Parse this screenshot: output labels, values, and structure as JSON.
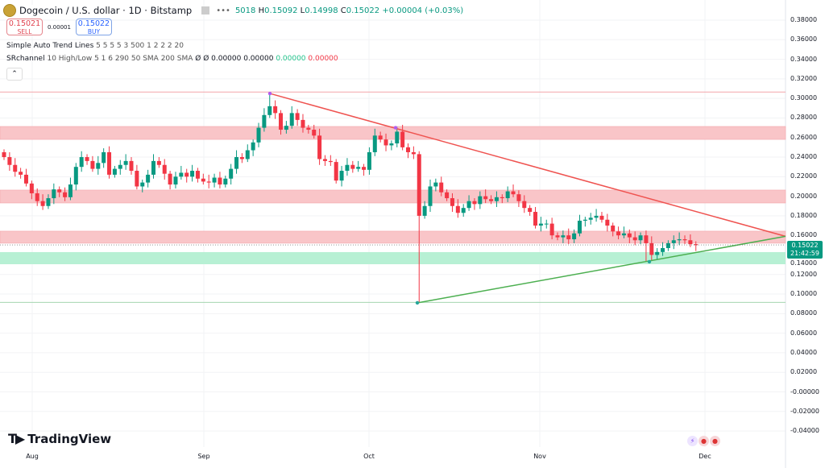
{
  "header": {
    "symbol_title": "Dogecoin / U.S. dollar · 1D · Bitstamp",
    "more_icon": "ellipsis-icon",
    "open_partial": "5018",
    "high_label": "H",
    "high": "0.15092",
    "low_label": "L",
    "low": "0.14998",
    "close_label": "C",
    "close": "0.15022",
    "change": "+0.00004 (+0.03%)"
  },
  "trade": {
    "sell_price": "0.15021",
    "sell_label": "SELL",
    "spread": "0.00001",
    "buy_price": "0.15022",
    "buy_label": "BUY"
  },
  "indicators": [
    {
      "name": "Simple Auto Trend Lines",
      "params": "5 5 5 5 3 500 1 2 2 2 20"
    },
    {
      "name": "SRchannel",
      "params": "10 High/Low 5 1 6 290 50 SMA 200 SMA",
      "v1": "Ø Ø 0.00000 0.00000",
      "v2": "0.00000",
      "v3": "0.00000"
    }
  ],
  "collapse_icon": "chevron-up-icon",
  "brand": "TradingView",
  "current_price": {
    "price": "0.15022",
    "countdown": "21:42:59"
  },
  "colors": {
    "up": "#089981",
    "down": "#f23645",
    "resistance_zone": "#f9c5c8",
    "support_zone": "#b7f0d4",
    "trend_down": "#ef5350",
    "trend_up": "#4caf50",
    "pivot": "#b05cf0"
  },
  "chart_data": {
    "type": "candlestick",
    "title": "Dogecoin / U.S. dollar · 1D · Bitstamp",
    "x_tick_labels": [
      "Aug",
      "Sep",
      "Oct",
      "Nov",
      "Dec"
    ],
    "y_tick_labels": [
      "0.38000",
      "0.36000",
      "0.34000",
      "0.32000",
      "0.30000",
      "0.28000",
      "0.26000",
      "0.24000",
      "0.22000",
      "0.20000",
      "0.18000",
      "0.16000",
      "0.14000",
      "0.12000",
      "0.10000",
      "0.08000",
      "0.06000",
      "0.04000",
      "0.02000",
      "-0.00000",
      "-0.02000",
      "-0.04000"
    ],
    "ylim": [
      -0.045,
      0.395
    ],
    "first_candle_date": "Jul 27",
    "closes": [
      0.24,
      0.232,
      0.225,
      0.222,
      0.213,
      0.203,
      0.195,
      0.19,
      0.198,
      0.207,
      0.204,
      0.199,
      0.212,
      0.23,
      0.24,
      0.236,
      0.228,
      0.234,
      0.245,
      0.222,
      0.228,
      0.232,
      0.236,
      0.226,
      0.21,
      0.214,
      0.222,
      0.236,
      0.232,
      0.223,
      0.212,
      0.22,
      0.224,
      0.22,
      0.226,
      0.218,
      0.215,
      0.214,
      0.219,
      0.212,
      0.218,
      0.228,
      0.24,
      0.238,
      0.247,
      0.255,
      0.27,
      0.283,
      0.292,
      0.285,
      0.268,
      0.272,
      0.285,
      0.278,
      0.27,
      0.268,
      0.262,
      0.238,
      0.236,
      0.235,
      0.216,
      0.226,
      0.232,
      0.228,
      0.23,
      0.227,
      0.245,
      0.262,
      0.258,
      0.252,
      0.254,
      0.266,
      0.25,
      0.245,
      0.243,
      0.18,
      0.19,
      0.21,
      0.214,
      0.204,
      0.198,
      0.19,
      0.183,
      0.188,
      0.195,
      0.192,
      0.2,
      0.197,
      0.195,
      0.199,
      0.198,
      0.205,
      0.202,
      0.195,
      0.188,
      0.184,
      0.17,
      0.172,
      0.172,
      0.16,
      0.158,
      0.16,
      0.156,
      0.162,
      0.175,
      0.176,
      0.178,
      0.18,
      0.176,
      0.17,
      0.164,
      0.16,
      0.162,
      0.158,
      0.155,
      0.16,
      0.152,
      0.14,
      0.143,
      0.147,
      0.152,
      0.155,
      0.156,
      0.155,
      0.151,
      0.15
    ],
    "notable_wicks": {
      "high_peak": 0.305,
      "low_spike": 0.091,
      "recent_low": 0.133
    },
    "horizontal_lines": [
      0.3065,
      0.0915
    ],
    "resistance_zones": [
      [
        0.2581,
        0.2713
      ],
      [
        0.1931,
        0.2063
      ],
      [
        0.152,
        0.1643
      ]
    ],
    "support_zones": [
      [
        0.1305,
        0.1429
      ]
    ],
    "trend_lines": [
      {
        "from": [
          "Sep 13",
          0.305
        ],
        "to": [
          "Dec 3",
          0.159
        ],
        "color": "down"
      },
      {
        "from": [
          "Oct 10",
          0.091
        ],
        "to": [
          "Dec 3",
          0.159
        ],
        "color": "up"
      }
    ],
    "last_price": 0.15022,
    "grid": true
  }
}
